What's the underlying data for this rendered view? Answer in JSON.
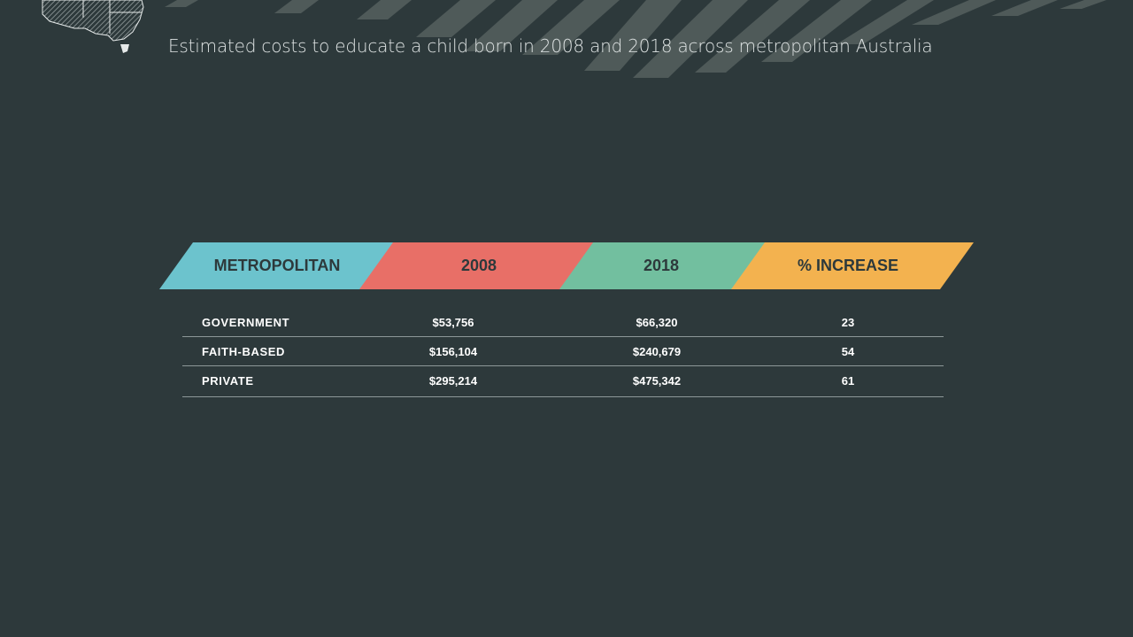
{
  "subtitle": "Estimated costs to educate a child born in 2008 and 2018 across metropolitan Australia",
  "colors": {
    "background": "#2d393b",
    "metropolitan": "#6cc3cd",
    "y2008": "#e86f67",
    "y2018": "#72bf9f",
    "increase": "#f3b24f"
  },
  "icons": {
    "map": "australia-map-icon"
  },
  "chart_data": {
    "type": "table",
    "columns": [
      "METROPOLITAN",
      "2008",
      "2018",
      "% INCREASE"
    ],
    "rows": [
      {
        "name": "GOVERNMENT",
        "y2008": "$53,756",
        "y2018": "$66,320",
        "increase": "23"
      },
      {
        "name": "FAITH-BASED",
        "y2008": "$156,104",
        "y2018": "$240,679",
        "increase": "54"
      },
      {
        "name": "PRIVATE",
        "y2008": "$295,214",
        "y2018": "$475,342",
        "increase": "61"
      }
    ]
  }
}
